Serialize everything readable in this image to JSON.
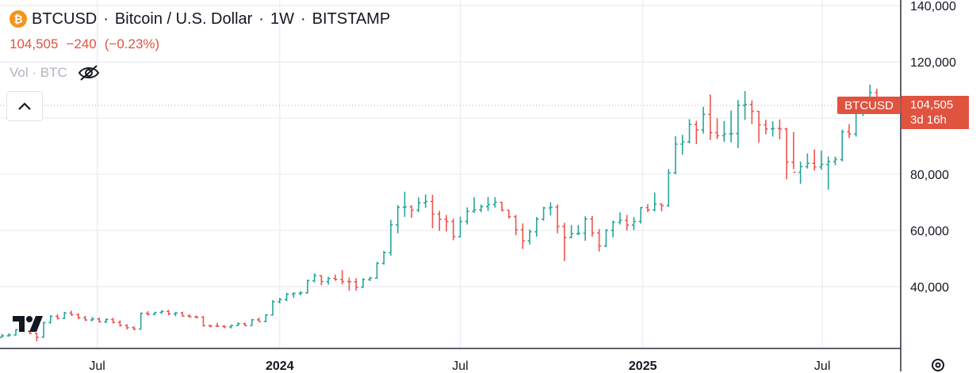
{
  "header": {
    "symbol": "BTCUSD",
    "name": "Bitcoin / U.S. Dollar",
    "interval": "1W",
    "exchange": "BITSTAMP",
    "icon_glyph": "₿",
    "last_price": "104,505",
    "change": "−240",
    "change_pct": "(−0.23%)",
    "volume_label": "Vol · BTC"
  },
  "price_tag": {
    "symbol": "BTCUSD",
    "price": "104,505",
    "countdown": "3d 16h"
  },
  "icons": {
    "btc": "bitcoin-icon",
    "hide": "eye-off-icon",
    "collapse": "chevron-up-icon",
    "logo": "tradingview-logo",
    "settings": "gear-icon"
  },
  "colors": {
    "up": "#26a69a",
    "down": "#ef5350",
    "accent": "#e0533f",
    "btc_orange": "#f7931a",
    "grid": "#e6e8ee"
  },
  "chart_data": {
    "type": "ohlc",
    "title": "BTCUSD · Bitcoin / U.S. Dollar · 1W · BITSTAMP",
    "grid": true,
    "y_axis": {
      "position": "right",
      "ylim": [
        18000,
        142000
      ],
      "ticks": [
        40000,
        60000,
        80000,
        100000,
        120000,
        140000
      ],
      "tick_labels": [
        "40,000",
        "60,000",
        "80,000",
        "",
        "120,000",
        "140,000"
      ]
    },
    "x_axis": {
      "ticks": [
        "2023-07-01",
        "2024-01-01",
        "2024-07-01",
        "2025-01-01",
        "2025-07-01"
      ],
      "tick_labels": [
        "Jul",
        "2024",
        "Jul",
        "2025",
        "Jul"
      ],
      "bold_labels": [
        "2024",
        "2025"
      ],
      "range": [
        "2023-03-25",
        "2025-09-18"
      ]
    },
    "series": [
      {
        "x_start": "2023-03-27",
        "x_step_days": 7,
        "ohlc": [
          [
            22000,
            23200,
            21800,
            22500
          ],
          [
            22500,
            23400,
            22200,
            22800
          ],
          [
            22800,
            24900,
            22600,
            24700
          ],
          [
            24700,
            25200,
            23900,
            24100
          ],
          [
            24100,
            24400,
            23100,
            23400
          ],
          [
            23400,
            23600,
            20500,
            22000
          ],
          [
            22000,
            27500,
            21800,
            27200
          ],
          [
            27200,
            29800,
            26900,
            29400
          ],
          [
            29400,
            30200,
            28300,
            28700
          ],
          [
            28700,
            31000,
            28500,
            30600
          ],
          [
            30600,
            31400,
            29600,
            30000
          ],
          [
            30000,
            30500,
            28400,
            28900
          ],
          [
            28900,
            29600,
            27800,
            28100
          ],
          [
            28100,
            29200,
            27700,
            28500
          ],
          [
            28500,
            29000,
            27200,
            27500
          ],
          [
            27500,
            28700,
            27000,
            28300
          ],
          [
            28300,
            28900,
            26900,
            27300
          ],
          [
            27300,
            28000,
            25800,
            26200
          ],
          [
            26200,
            26600,
            24800,
            25400
          ],
          [
            25400,
            25900,
            24500,
            24900
          ],
          [
            24900,
            30800,
            24700,
            30500
          ],
          [
            30500,
            31300,
            29700,
            30100
          ],
          [
            30100,
            31000,
            29900,
            30800
          ],
          [
            30800,
            31600,
            30300,
            31200
          ],
          [
            31200,
            31700,
            29800,
            30300
          ],
          [
            30300,
            31000,
            29400,
            30600
          ],
          [
            30600,
            31100,
            29300,
            29600
          ],
          [
            29600,
            30200,
            28900,
            29300
          ],
          [
            29300,
            29700,
            28700,
            29100
          ],
          [
            29100,
            29500,
            25800,
            26100
          ],
          [
            26100,
            26400,
            25500,
            26000
          ],
          [
            26000,
            27100,
            25600,
            25900
          ],
          [
            25900,
            26300,
            25200,
            25700
          ],
          [
            25700,
            26500,
            25100,
            26200
          ],
          [
            26200,
            27300,
            26000,
            26800
          ],
          [
            26800,
            27200,
            25900,
            26200
          ],
          [
            26200,
            28500,
            26000,
            28200
          ],
          [
            28200,
            29000,
            27500,
            27600
          ],
          [
            27600,
            30200,
            27400,
            29900
          ],
          [
            29900,
            35200,
            29700,
            34600
          ],
          [
            34600,
            36000,
            34000,
            35400
          ],
          [
            35400,
            37800,
            34800,
            37300
          ],
          [
            37300,
            38000,
            36000,
            37600
          ],
          [
            37600,
            38400,
            36900,
            37800
          ],
          [
            37800,
            42500,
            37500,
            42100
          ],
          [
            42100,
            44700,
            41500,
            43900
          ],
          [
            43900,
            44000,
            40500,
            41800
          ],
          [
            41800,
            43500,
            40700,
            42900
          ],
          [
            42900,
            44300,
            42100,
            42600
          ],
          [
            42600,
            45900,
            40800,
            41800
          ],
          [
            41800,
            43200,
            38600,
            41700
          ],
          [
            41700,
            43000,
            38600,
            39800
          ],
          [
            39800,
            43000,
            39500,
            42500
          ],
          [
            42500,
            43500,
            42000,
            43000
          ],
          [
            43000,
            48800,
            42800,
            48300
          ],
          [
            48300,
            52700,
            47800,
            52100
          ],
          [
            52100,
            63800,
            51000,
            62000
          ],
          [
            62000,
            69000,
            59000,
            68200
          ],
          [
            68200,
            73800,
            64800,
            68400
          ],
          [
            68400,
            68900,
            64500,
            67200
          ],
          [
            67200,
            71800,
            66500,
            69800
          ],
          [
            69800,
            72800,
            68000,
            70300
          ],
          [
            70300,
            72700,
            60800,
            65800
          ],
          [
            65800,
            67000,
            59800,
            64000
          ],
          [
            64000,
            65500,
            59600,
            63200
          ],
          [
            63200,
            64200,
            56500,
            57800
          ],
          [
            57800,
            64900,
            57500,
            63200
          ],
          [
            63200,
            68200,
            62100,
            66800
          ],
          [
            66800,
            71800,
            66200,
            67300
          ],
          [
            67300,
            69200,
            66500,
            68500
          ],
          [
            68500,
            71900,
            66900,
            69200
          ],
          [
            69200,
            71800,
            68100,
            70000
          ],
          [
            70000,
            70100,
            66700,
            67200
          ],
          [
            67200,
            67300,
            64200,
            64900
          ],
          [
            64900,
            65500,
            58300,
            60200
          ],
          [
            60200,
            62500,
            53400,
            56300
          ],
          [
            56300,
            60400,
            55000,
            59500
          ],
          [
            59500,
            64800,
            57800,
            64000
          ],
          [
            64000,
            68400,
            63500,
            68000
          ],
          [
            68000,
            70000,
            65300,
            68300
          ],
          [
            68300,
            69200,
            59000,
            61400
          ],
          [
            61400,
            62700,
            49100,
            57500
          ],
          [
            57500,
            61900,
            57200,
            58800
          ],
          [
            58800,
            61900,
            58300,
            59000
          ],
          [
            59000,
            65000,
            56300,
            64100
          ],
          [
            64100,
            65100,
            57800,
            59100
          ],
          [
            59100,
            60500,
            52500,
            54500
          ],
          [
            54500,
            60500,
            54000,
            60000
          ],
          [
            60000,
            63500,
            57500,
            62900
          ],
          [
            62900,
            66400,
            62100,
            63600
          ],
          [
            63600,
            65500,
            60000,
            61900
          ],
          [
            61900,
            64800,
            60100,
            63200
          ],
          [
            63200,
            68400,
            62400,
            68100
          ],
          [
            68100,
            69400,
            66500,
            67300
          ],
          [
            67300,
            73500,
            66800,
            69400
          ],
          [
            69400,
            69600,
            66800,
            68800
          ],
          [
            68800,
            81800,
            68500,
            80500
          ],
          [
            80500,
            93500,
            80000,
            90700
          ],
          [
            90700,
            94000,
            87000,
            91500
          ],
          [
            91500,
            99600,
            91000,
            97700
          ],
          [
            97700,
            99000,
            90700,
            95800
          ],
          [
            95800,
            104000,
            94500,
            101300
          ],
          [
            101300,
            108400,
            92200,
            94800
          ],
          [
            94800,
            99900,
            92500,
            93700
          ],
          [
            93700,
            98900,
            91500,
            94300
          ],
          [
            94300,
            102700,
            91300,
            94500
          ],
          [
            94500,
            106400,
            89300,
            104500
          ],
          [
            104500,
            109600,
            99300,
            104800
          ],
          [
            104800,
            106300,
            97800,
            102400
          ],
          [
            102400,
            102500,
            91200,
            97600
          ],
          [
            97600,
            99400,
            94200,
            96100
          ],
          [
            96100,
            98900,
            93400,
            96300
          ],
          [
            96300,
            99500,
            92400,
            96100
          ],
          [
            96100,
            96500,
            78200,
            84300
          ],
          [
            84300,
            95000,
            81800,
            80700
          ],
          [
            80700,
            84500,
            76600,
            82700
          ],
          [
            82700,
            87400,
            82000,
            83900
          ],
          [
            83900,
            88800,
            81300,
            82600
          ],
          [
            82600,
            88400,
            81600,
            83500
          ],
          [
            83500,
            86300,
            74500,
            84500
          ],
          [
            84500,
            86300,
            83200,
            85200
          ],
          [
            85200,
            95800,
            84600,
            95100
          ],
          [
            95100,
            97800,
            92900,
            94300
          ],
          [
            94300,
            104900,
            93400,
            104200
          ],
          [
            104200,
            106500,
            100700,
            105700
          ],
          [
            105700,
            111900,
            102000,
            109100
          ],
          [
            109100,
            110400,
            103400,
            104800
          ],
          [
            104800,
            105400,
            102500,
            104500
          ]
        ]
      }
    ]
  }
}
